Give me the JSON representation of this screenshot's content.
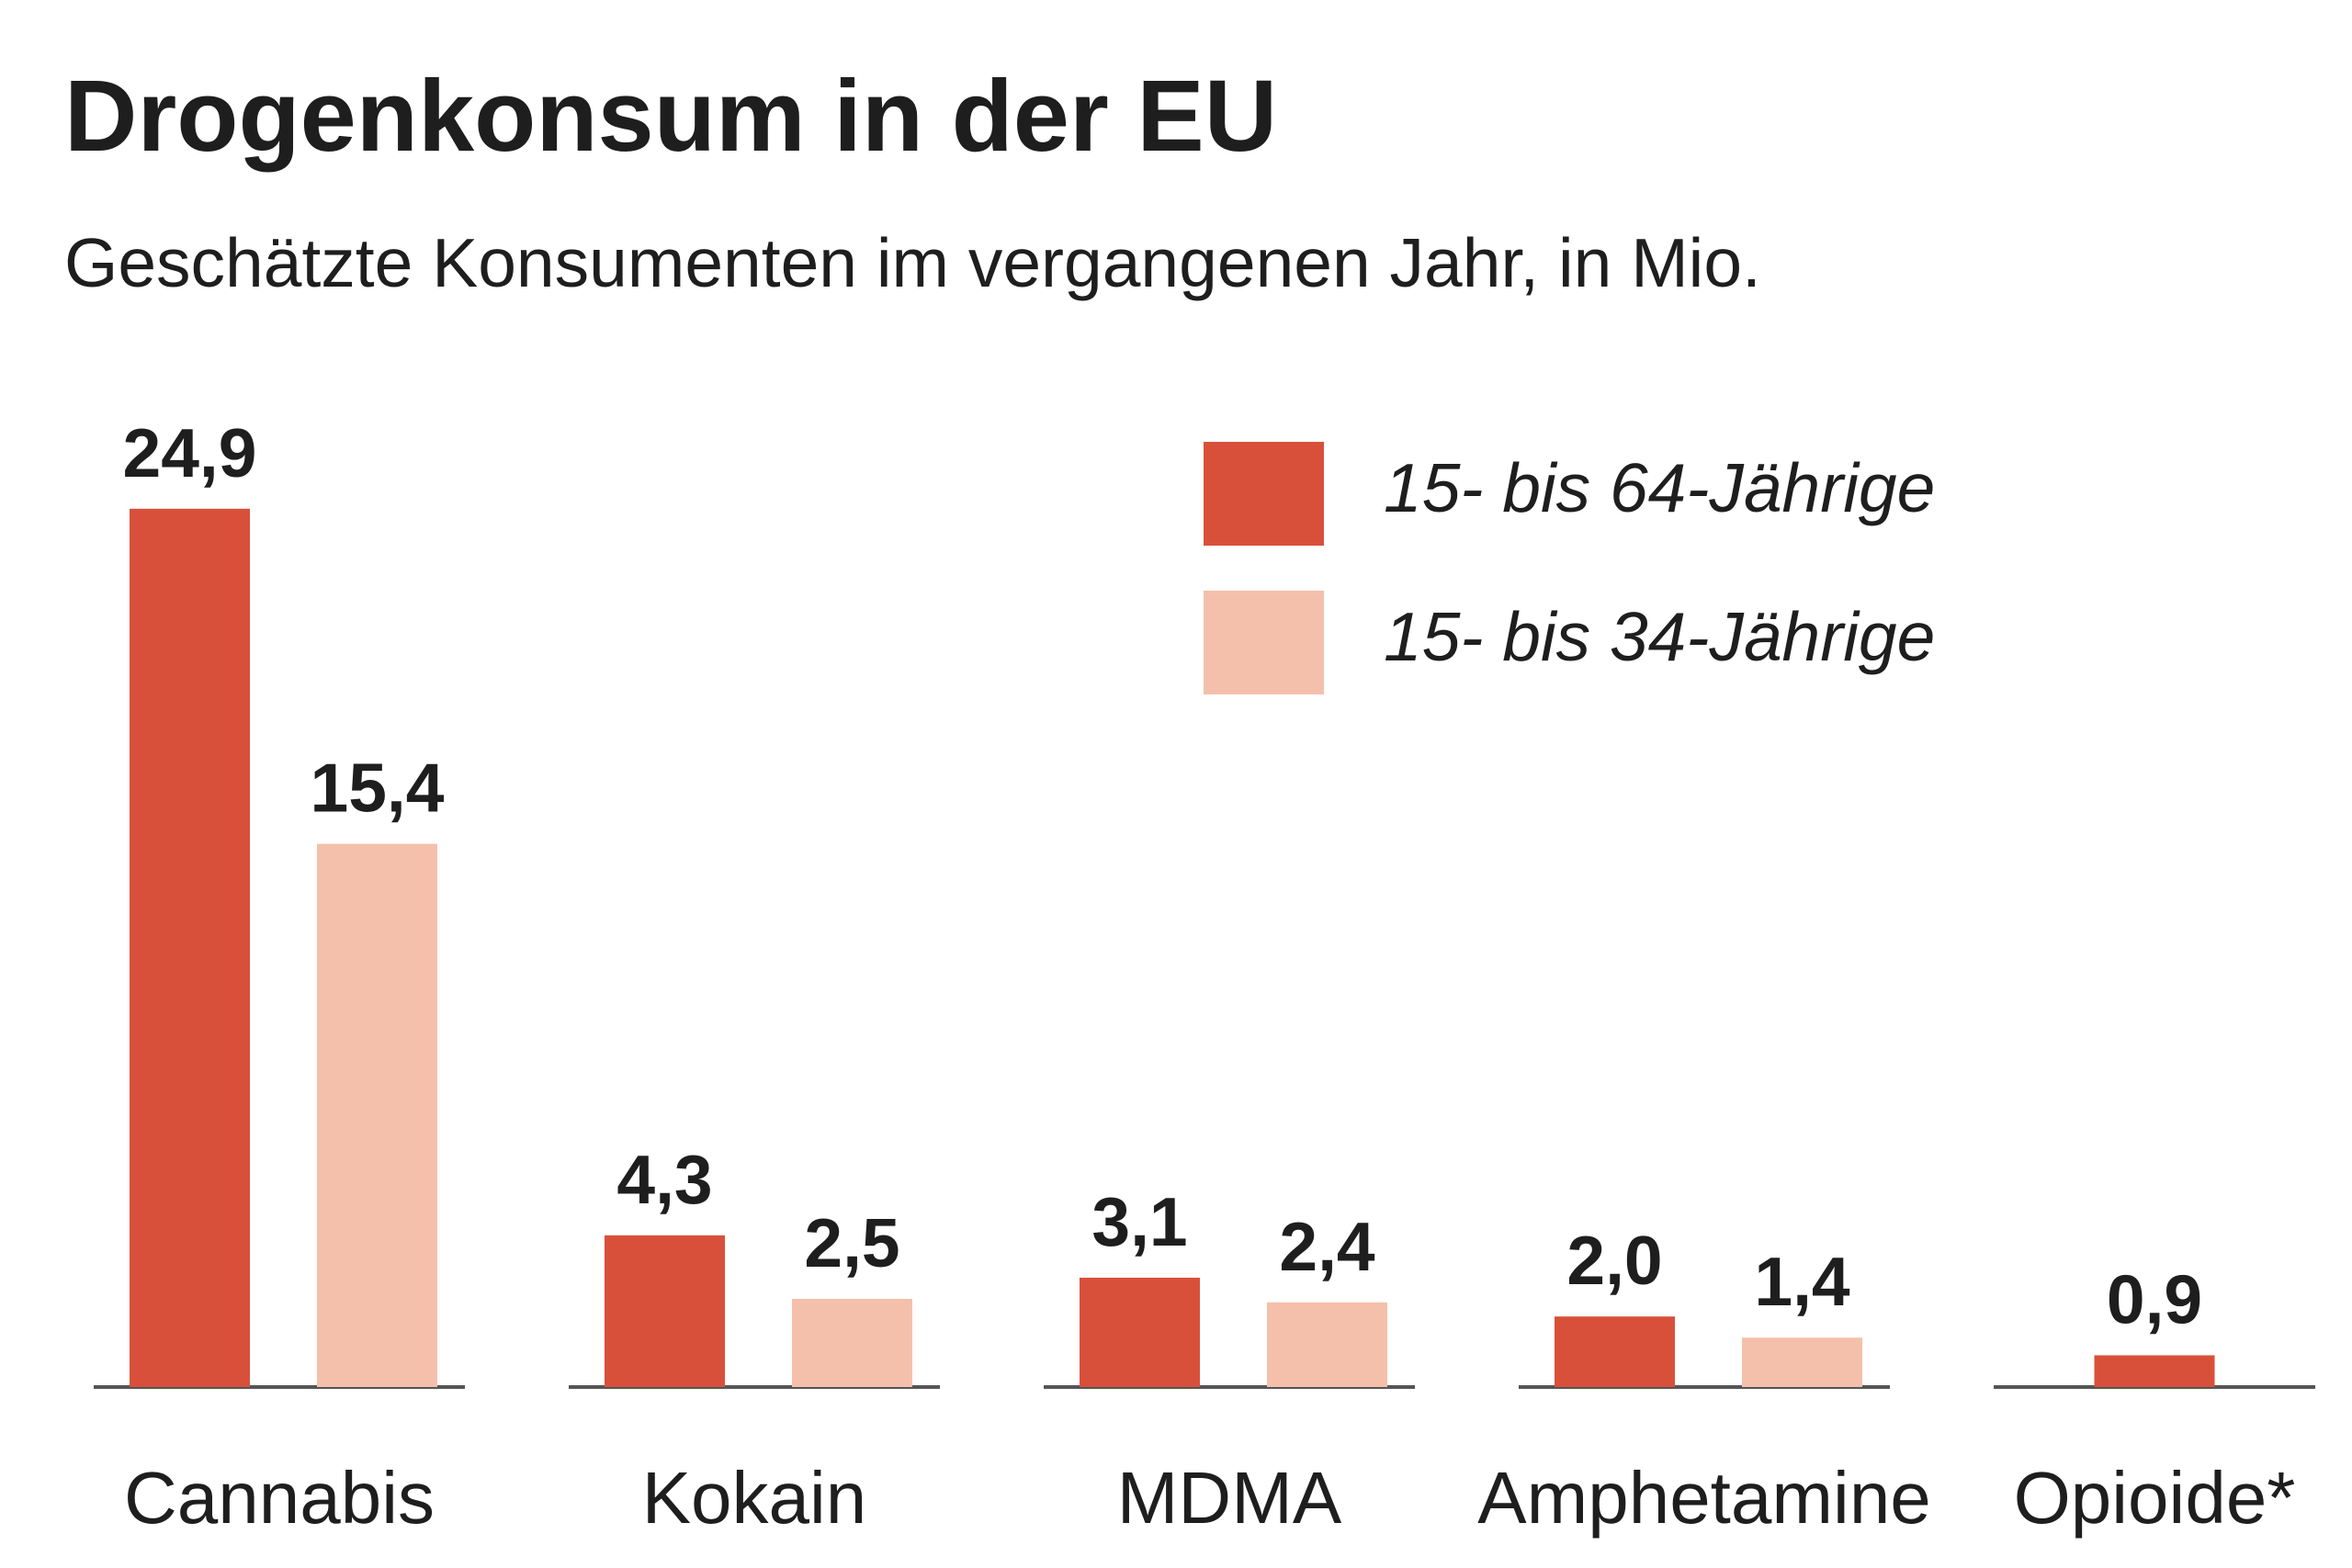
{
  "chart_data": {
    "type": "bar",
    "title": "Drogenkonsum in der EU",
    "subtitle": "Geschätzte Konsumenten im vergangenen Jahr, in Mio.",
    "categories": [
      "Cannabis",
      "Kokain",
      "MDMA",
      "Amphetamine",
      "Opioide*"
    ],
    "series": [
      {
        "name": "15- bis 64-Jährige",
        "color": "#d9503a",
        "values": [
          24.9,
          4.3,
          3.1,
          2.0,
          0.9
        ],
        "value_labels": [
          "24,9",
          "4,3",
          "3,1",
          "2,0",
          "0,9"
        ]
      },
      {
        "name": "15- bis 34-Jährige",
        "color": "#f4c0ab",
        "values": [
          15.4,
          2.5,
          2.4,
          1.4,
          null
        ],
        "value_labels": [
          "15,4",
          "2,5",
          "2,4",
          "1,4",
          null
        ]
      }
    ]
  }
}
